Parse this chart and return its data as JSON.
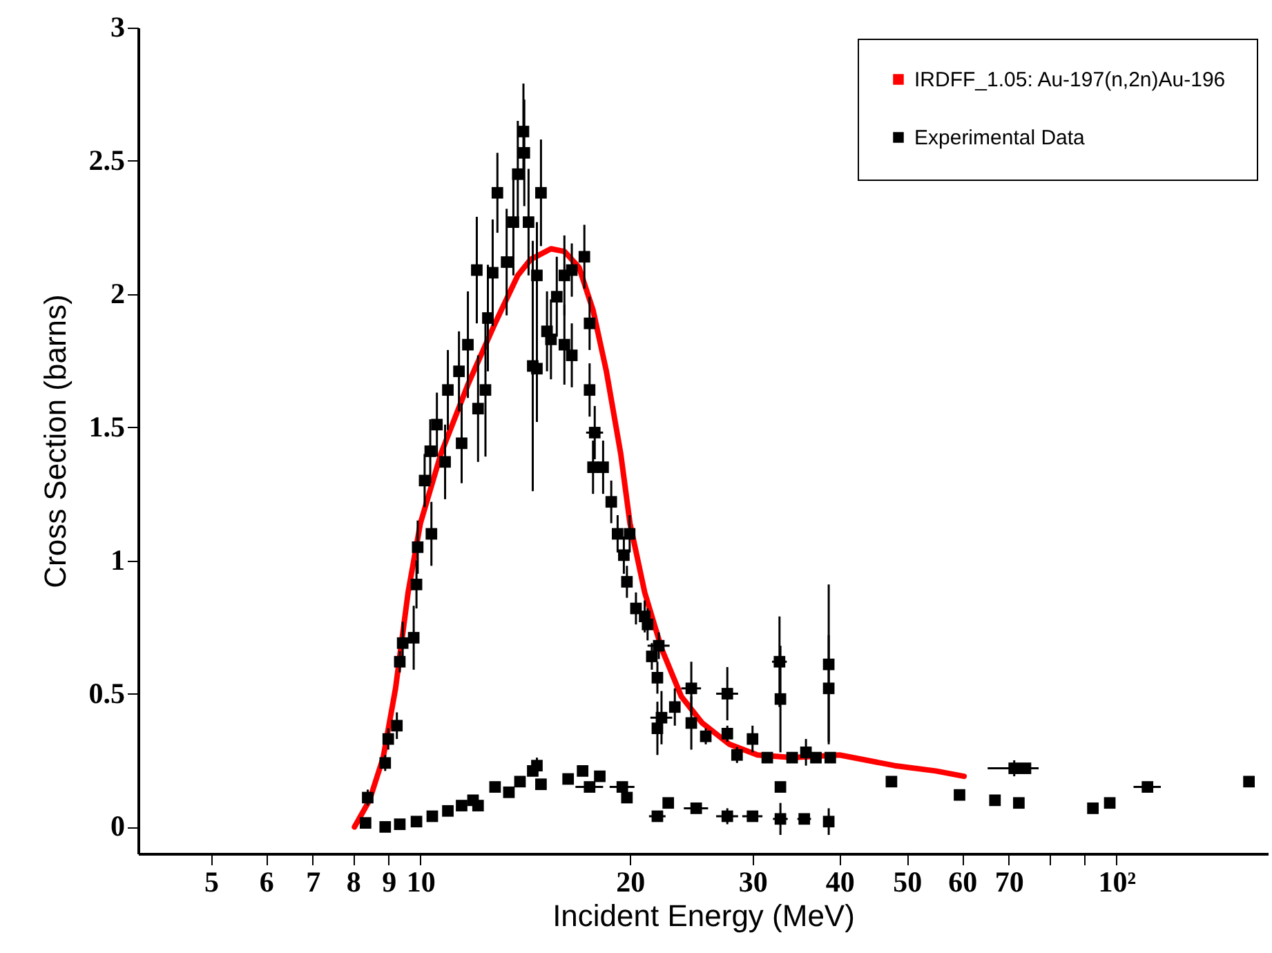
{
  "chart_data": {
    "type": "line",
    "xlabel": "Incident Energy (MeV)",
    "ylabel": "Cross Section (barns)",
    "log": "x",
    "grid": false,
    "legend": "top right",
    "xlim": [
      3.93,
      165
    ],
    "xticks": [
      5,
      6,
      7,
      8,
      9,
      10,
      20,
      30,
      40,
      50,
      60,
      70,
      {
        "value": 80,
        "label": null
      },
      {
        "value": 90,
        "label": null
      },
      {
        "value": 100,
        "label": "10²"
      }
    ],
    "ylim": [
      -0.1,
      3
    ],
    "yticks": [
      0,
      0.5,
      1,
      1.5,
      2,
      2.5,
      3
    ],
    "series": [
      {
        "name": "IRDFF_1.05: Au-197(n,2n)Au-196",
        "color": "#ff0000",
        "marker": "none",
        "line_style": "solid",
        "x": [
          8.04,
          8.45,
          8.84,
          9.21,
          9.6,
          10,
          10.7,
          11.7,
          12.8,
          13.8,
          14.4,
          15.4,
          16.1,
          16.9,
          17.7,
          18.5,
          19.4,
          20,
          21,
          22.2,
          23.7,
          25.4,
          27.8,
          30.5,
          34.2,
          40,
          48,
          55,
          60.4
        ],
        "values": [
          0,
          0.1,
          0.26,
          0.52,
          0.88,
          1.14,
          1.4,
          1.66,
          1.89,
          2.07,
          2.13,
          2.17,
          2.16,
          2.1,
          1.94,
          1.71,
          1.4,
          1.14,
          0.88,
          0.67,
          0.49,
          0.39,
          0.31,
          0.27,
          0.26,
          0.27,
          0.23,
          0.21,
          0.19
        ]
      },
      {
        "name": "Experimental Data",
        "type": "scatter",
        "color": "#000000",
        "marker": "square",
        "x": [
          8.34,
          8.4,
          8.9,
          8.99,
          9.25,
          9.34,
          9.43,
          9.78,
          9.87,
          9.91,
          10.14,
          10.33,
          10.37,
          10.56,
          10.85,
          10.95,
          11.36,
          11.46,
          11.7,
          12.05,
          12.1,
          12.4,
          12.5,
          12.7,
          12.9,
          13.3,
          13.6,
          13.8,
          14.06,
          14.1,
          14.3,
          14.5,
          14.7,
          14.7,
          14.9,
          15.2,
          15.4,
          15.7,
          16.1,
          16.1,
          16.5,
          16.5,
          17.2,
          17.5,
          17.5,
          17.8,
          17.7,
          18.3,
          18.8,
          19.2,
          19.6,
          19.98,
          19.8,
          20.4,
          21,
          21.2,
          22,
          21.5,
          21.9,
          22.2,
          21.9,
          23.2,
          24.5,
          24.5,
          25.7,
          27.6,
          27.6,
          28.5,
          30,
          31.5,
          32.8,
          32.9,
          34.2,
          35.8,
          37,
          38.6,
          38.6,
          38.8,
          47.5,
          71.3,
          74,
          110.8,
          155,
          8.9,
          9.34,
          9.87,
          10.4,
          10.95,
          11.46,
          11.9,
          12.1,
          12.8,
          13.4,
          13.9,
          14.5,
          14.7,
          14.9,
          16.3,
          17.1,
          17.5,
          18.1,
          19.5,
          19.8,
          21.9,
          22.7,
          24.9,
          27.6,
          30,
          32.9,
          35.6,
          38.6,
          59.5,
          66.9,
          72.4,
          92.5,
          97.8,
          32.9
        ],
        "values": [
          0.015,
          0.11,
          0.24,
          0.33,
          0.38,
          0.62,
          0.69,
          0.71,
          0.91,
          1.05,
          1.3,
          1.41,
          1.1,
          1.51,
          1.37,
          1.64,
          1.71,
          1.44,
          1.81,
          2.09,
          1.57,
          1.64,
          1.91,
          2.08,
          2.38,
          2.12,
          2.27,
          2.45,
          2.61,
          2.53,
          2.27,
          1.73,
          1.72,
          2.07,
          2.38,
          1.86,
          1.83,
          1.99,
          2.07,
          1.81,
          2.09,
          1.77,
          2.14,
          1.89,
          1.64,
          1.48,
          1.35,
          1.35,
          1.22,
          1.1,
          1.02,
          1.1,
          0.92,
          0.82,
          0.79,
          0.76,
          0.68,
          0.64,
          0.56,
          0.41,
          0.37,
          0.45,
          0.52,
          0.39,
          0.34,
          0.5,
          0.35,
          0.27,
          0.33,
          0.26,
          0.62,
          0.48,
          0.26,
          0.28,
          0.26,
          0.61,
          0.52,
          0.26,
          0.17,
          0.22,
          0.22,
          0.15,
          0.17,
          0,
          0.01,
          0.02,
          0.04,
          0.06,
          0.08,
          0.1,
          0.08,
          0.15,
          0.13,
          0.17,
          0.21,
          0.23,
          0.16,
          0.18,
          0.21,
          0.15,
          0.19,
          0.15,
          0.11,
          0.04,
          0.09,
          0.07,
          0.04,
          0.04,
          0.03,
          0.03,
          0.02,
          0.12,
          0.1,
          0.09,
          0.07,
          0.09,
          0.15
        ],
        "errors": [
          null,
          0.03,
          0.03,
          0.04,
          0.05,
          0.04,
          0.08,
          0.12,
          0.09,
          0.1,
          0.1,
          0.12,
          0.12,
          0.12,
          0.14,
          0.15,
          0.15,
          0.15,
          0.2,
          0.2,
          0.2,
          0.25,
          0.2,
          0.2,
          0.15,
          0.2,
          0.2,
          0.2,
          0.18,
          0.2,
          0.2,
          0.47,
          0.2,
          0.2,
          0.2,
          0.15,
          0.15,
          0.15,
          0.15,
          0.15,
          0.1,
          0.12,
          0.12,
          0.1,
          0.1,
          0.1,
          0.1,
          0.1,
          0.08,
          0.07,
          0.07,
          0.07,
          0.06,
          0.06,
          0.06,
          0.06,
          0.05,
          0.05,
          0.06,
          0.1,
          0.1,
          0.07,
          0.1,
          0.1,
          0.03,
          0.1,
          0.03,
          0.03,
          0.05,
          0.02,
          0.17,
          0.2,
          0.02,
          0.05,
          0.02,
          0.3,
          0.2,
          0.02,
          null,
          0.03,
          null,
          0.02,
          null,
          null,
          null,
          null,
          null,
          null,
          null,
          null,
          null,
          null,
          null,
          null,
          null,
          0.03,
          null,
          null,
          null,
          null,
          null,
          null,
          null,
          null,
          null,
          null,
          0.03,
          null,
          0.06,
          null,
          0.05,
          null,
          null,
          null,
          null,
          null,
          null
        ],
        "xerrors": [
          null,
          null,
          null,
          null,
          null,
          0.15,
          null,
          null,
          null,
          null,
          null,
          null,
          null,
          null,
          null,
          null,
          null,
          null,
          null,
          null,
          null,
          null,
          null,
          null,
          null,
          null,
          null,
          null,
          null,
          null,
          null,
          null,
          null,
          null,
          null,
          null,
          null,
          null,
          null,
          null,
          null,
          null,
          null,
          null,
          null,
          0.5,
          null,
          null,
          null,
          null,
          null,
          null,
          null,
          null,
          null,
          null,
          0.8,
          null,
          null,
          0.8,
          null,
          null,
          0.8,
          null,
          null,
          1,
          null,
          null,
          null,
          null,
          0.8,
          null,
          null,
          null,
          null,
          null,
          null,
          null,
          null,
          6,
          null,
          5,
          null,
          null,
          null,
          null,
          null,
          null,
          null,
          null,
          null,
          null,
          null,
          null,
          null,
          null,
          null,
          null,
          null,
          0.8,
          null,
          0.8,
          null,
          0.6,
          null,
          1,
          1,
          1,
          0.8,
          0.8,
          null,
          null,
          null,
          null,
          null,
          null,
          null
        ]
      }
    ]
  }
}
